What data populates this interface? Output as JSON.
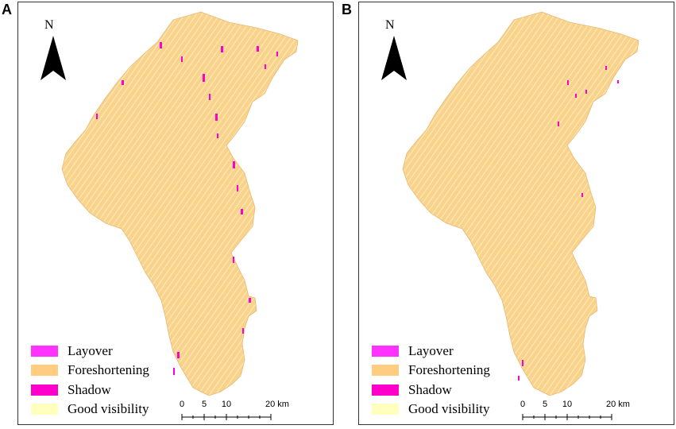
{
  "panels": [
    {
      "letter": "A",
      "north_label": "N",
      "legend": [
        {
          "label": "Layover",
          "color": "#ff33ff"
        },
        {
          "label": "Foreshortening",
          "color": "#ffcc80"
        },
        {
          "label": "Shadow",
          "color": "#ff00cc"
        },
        {
          "label": "Good visibility",
          "color": "#ffffbe"
        }
      ],
      "scale": {
        "ticks": [
          "0",
          "5",
          "10",
          "20 km"
        ]
      }
    },
    {
      "letter": "B",
      "north_label": "N",
      "legend": [
        {
          "label": "Layover",
          "color": "#ff33ff"
        },
        {
          "label": "Foreshortening",
          "color": "#ffcc80"
        },
        {
          "label": "Shadow",
          "color": "#ff00cc"
        },
        {
          "label": "Good visibility",
          "color": "#ffffbe"
        }
      ],
      "scale": {
        "ticks": [
          "0",
          "5",
          "10",
          "20 km"
        ]
      }
    }
  ],
  "colors": {
    "terrain_fill": "#f9d38e",
    "terrain_hatch": "#fff3bf",
    "terrain_shade": "#e8b870",
    "magenta": "#ff00cc"
  }
}
